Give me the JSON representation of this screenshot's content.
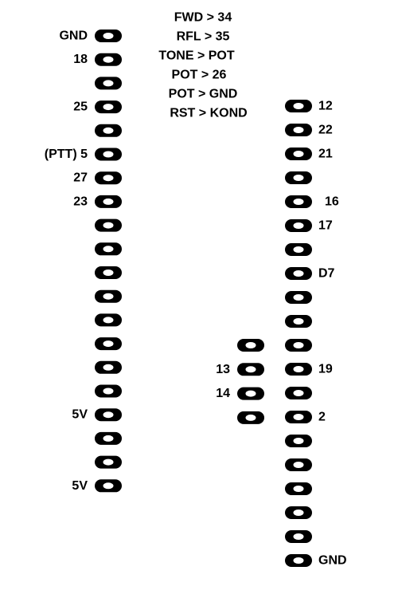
{
  "notes": [
    "FWD > 34",
    "RFL > 35",
    "TONE > POT",
    "POT > 26",
    "POT > GND",
    "RST > KOND"
  ],
  "left_header": {
    "pins": [
      "GND",
      "18",
      "",
      "25",
      "",
      "(PTT) 5",
      "27",
      "23",
      "",
      "",
      "",
      "",
      "",
      "",
      "",
      "",
      "5V",
      "",
      "",
      "5V"
    ]
  },
  "right_header": {
    "pins": [
      "12",
      "22",
      "21",
      "",
      "16",
      "17",
      "",
      "D7",
      "",
      "",
      "",
      "19",
      "",
      "2",
      "",
      "",
      "",
      "",
      "",
      "GND"
    ]
  },
  "middle_header": {
    "pins": [
      "",
      "13",
      "14",
      ""
    ]
  },
  "colors": {
    "pad": "#000000",
    "hole": "#ffffff",
    "text": "#000000"
  }
}
